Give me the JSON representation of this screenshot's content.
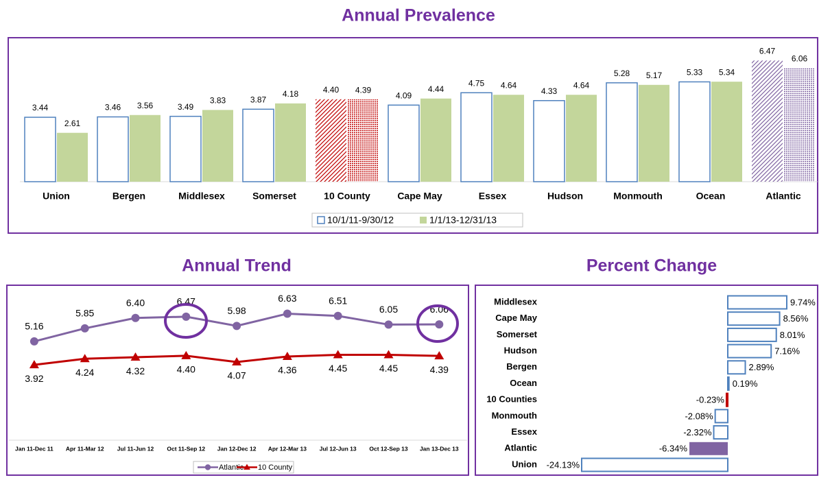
{
  "chart_data": [
    {
      "type": "bar",
      "title": "Annual Prevalence",
      "categories": [
        "Union",
        "Bergen",
        "Middlesex",
        "Somerset",
        "10 County",
        "Cape May",
        "Essex",
        "Hudson",
        "Monmouth",
        "Ocean",
        "Atlantic"
      ],
      "series": [
        {
          "name": "10/1/11-9/30/12",
          "color": "#4f81bd",
          "style": "outline",
          "colors": [
            "#4f81bd",
            "#4f81bd",
            "#4f81bd",
            "#4f81bd",
            "#c00000",
            "#4f81bd",
            "#4f81bd",
            "#4f81bd",
            "#4f81bd",
            "#4f81bd",
            "#8064a2"
          ],
          "values": [
            3.44,
            3.46,
            3.49,
            3.87,
            4.4,
            4.09,
            4.75,
            4.33,
            5.28,
            5.33,
            6.47
          ],
          "value_labels": [
            "3.44",
            "3.46",
            "3.49",
            "3.87",
            "4.40",
            "4.09",
            "4.75",
            "4.33",
            "5.28",
            "5.33",
            "6.47"
          ]
        },
        {
          "name": "1/1/13-12/31/13",
          "color": "#c3d69b",
          "style": "fill",
          "colors": [
            "#c3d69b",
            "#c3d69b",
            "#c3d69b",
            "#c3d69b",
            "#c00000",
            "#c3d69b",
            "#c3d69b",
            "#c3d69b",
            "#c3d69b",
            "#c3d69b",
            "#8064a2"
          ],
          "values": [
            2.61,
            3.56,
            3.83,
            4.18,
            4.39,
            4.44,
            4.64,
            4.64,
            5.17,
            5.34,
            6.06
          ],
          "value_labels": [
            "2.61",
            "3.56",
            "3.83",
            "4.18",
            "4.39",
            "4.44",
            "4.64",
            "4.64",
            "5.17",
            "5.34",
            "6.06"
          ]
        }
      ],
      "legend": "bottom"
    },
    {
      "type": "line",
      "title": "Annual Trend",
      "categories": [
        "Jan 11-Dec 11",
        "Apr 11-Mar 12",
        "Jul 11-Jun 12",
        "Oct 11-Sep 12",
        "Jan 12-Dec 12",
        "Apr 12-Mar 13",
        "Jul 12-Jun 13",
        "Oct 12-Sep 13",
        "Jan 13-Dec 13"
      ],
      "series": [
        {
          "name": "Atlantic",
          "color": "#8064a2",
          "marker": "circle",
          "values": [
            5.16,
            5.85,
            6.4,
            6.47,
            5.98,
            6.63,
            6.51,
            6.05,
            6.06
          ],
          "value_labels": [
            "5.16",
            "5.85",
            "6.40",
            "6.47",
            "5.98",
            "6.63",
            "6.51",
            "6.05",
            "6.06"
          ]
        },
        {
          "name": "10 County",
          "color": "#c00000",
          "marker": "triangle",
          "values": [
            3.92,
            4.24,
            4.32,
            4.4,
            4.07,
            4.36,
            4.45,
            4.45,
            4.39
          ],
          "value_labels": [
            "3.92",
            "4.24",
            "4.32",
            "4.40",
            "4.07",
            "4.36",
            "4.45",
            "4.45",
            "4.39"
          ]
        }
      ],
      "legend": "bottom"
    },
    {
      "type": "hbar",
      "title": "Percent Change",
      "categories": [
        "Middlesex",
        "Cape May",
        "Somerset",
        "Hudson",
        "Bergen",
        "Ocean",
        "10 Counties",
        "Monmouth",
        "Essex",
        "Atlantic",
        "Union"
      ],
      "values": [
        9.74,
        8.56,
        8.01,
        7.16,
        2.89,
        0.19,
        -0.23,
        -2.08,
        -2.32,
        -6.34,
        -24.13
      ],
      "value_labels": [
        "9.74%",
        "8.56%",
        "8.01%",
        "7.16%",
        "2.89%",
        "0.19%",
        "-0.23%",
        "-2.08%",
        "-2.32%",
        "-6.34%",
        "-24.13%"
      ],
      "color": "#4f81bd",
      "colors": [
        "#4f81bd",
        "#4f81bd",
        "#4f81bd",
        "#4f81bd",
        "#4f81bd",
        "#4f81bd",
        "#c00000",
        "#4f81bd",
        "#4f81bd",
        "#8064a2",
        "#4f81bd"
      ]
    }
  ]
}
